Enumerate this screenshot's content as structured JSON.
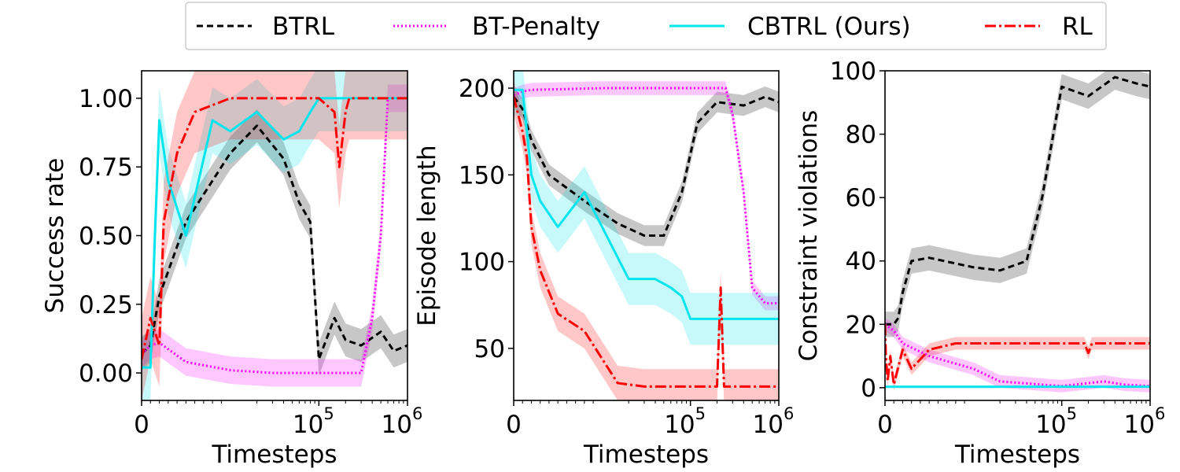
{
  "legend": [
    {
      "name": "BTRL",
      "color": "#000000",
      "dash": "8,5"
    },
    {
      "name": "BT-Penalty",
      "color": "#ff00ff",
      "dash": "2,3"
    },
    {
      "name": "CBTRL (Ours)",
      "color": "#00e5ee",
      "dash": ""
    },
    {
      "name": "RL",
      "color": "#ff0000",
      "dash": "14,4,3,4"
    }
  ],
  "chart_data": [
    {
      "type": "line",
      "title": "",
      "xlabel": "Timesteps",
      "ylabel": "Success rate",
      "xscale": "symlog",
      "xlim": [
        0,
        1000000
      ],
      "ylim": [
        -0.1,
        1.1
      ],
      "yticks": [
        "0.00",
        "0.25",
        "0.50",
        "0.75",
        "1.00"
      ],
      "ytick_values": [
        0.0,
        0.25,
        0.5,
        0.75,
        1.0
      ],
      "xtick_labels": [
        "0",
        "10",
        "10"
      ],
      "xtick_sups": [
        "",
        "5",
        "6"
      ],
      "series": [
        {
          "name": "BTRL",
          "x": [
            0,
            1000,
            2000,
            5000,
            10000,
            20000,
            40000,
            60000,
            80000,
            100000,
            150000,
            200000,
            300000,
            500000,
            700000,
            1000000
          ],
          "y": [
            0.07,
            0.1,
            0.28,
            0.55,
            0.8,
            0.9,
            0.78,
            0.62,
            0.55,
            0.05,
            0.2,
            0.12,
            0.1,
            0.15,
            0.08,
            0.1
          ],
          "band": 0.06
        },
        {
          "name": "BT-Penalty",
          "x": [
            0,
            1000,
            2000,
            5000,
            10000,
            30000,
            100000,
            300000,
            400000,
            500000,
            600000,
            1000000
          ],
          "y": [
            0.07,
            0.1,
            0.11,
            0.04,
            0.01,
            0.0,
            0.0,
            0.0,
            0.2,
            0.5,
            1.0,
            1.0
          ],
          "band": 0.05
        },
        {
          "name": "CBTRL (Ours)",
          "x": [
            0,
            1000,
            1500,
            2000,
            3000,
            5000,
            8000,
            10000,
            20000,
            40000,
            60000,
            80000,
            100000,
            1000000
          ],
          "y": [
            0.02,
            0.02,
            0.5,
            0.92,
            0.7,
            0.5,
            0.92,
            0.88,
            0.95,
            0.85,
            0.88,
            0.95,
            1.0,
            1.0
          ],
          "band": 0.12
        },
        {
          "name": "RL",
          "x": [
            0,
            1000,
            2000,
            2500,
            4000,
            6000,
            10000,
            20000,
            100000,
            150000,
            170000,
            200000,
            220000,
            1000000
          ],
          "y": [
            0.05,
            0.2,
            0.1,
            0.55,
            0.8,
            0.95,
            1.0,
            1.0,
            1.0,
            0.95,
            0.75,
            0.95,
            1.0,
            1.0
          ],
          "band": 0.15
        }
      ]
    },
    {
      "type": "line",
      "title": "",
      "xlabel": "Timesteps",
      "ylabel": "Episode length",
      "xscale": "symlog",
      "xlim": [
        0,
        1000000
      ],
      "ylim": [
        20,
        210
      ],
      "yticks": [
        "50",
        "100",
        "150",
        "200"
      ],
      "ytick_values": [
        50,
        100,
        150,
        200
      ],
      "xtick_labels": [
        "0",
        "10",
        "10"
      ],
      "xtick_sups": [
        "",
        "5",
        "6"
      ],
      "series": [
        {
          "name": "BTRL",
          "x": [
            0,
            1000,
            2000,
            4000,
            8000,
            15000,
            30000,
            50000,
            80000,
            120000,
            200000,
            400000,
            700000,
            1000000
          ],
          "y": [
            195,
            188,
            170,
            150,
            135,
            122,
            115,
            115,
            140,
            180,
            192,
            190,
            195,
            192
          ],
          "band": 6
        },
        {
          "name": "BT-Penalty",
          "x": [
            0,
            1000,
            2000,
            10000,
            100000,
            250000,
            300000,
            400000,
            500000,
            700000,
            1000000
          ],
          "y": [
            196,
            198,
            199,
            200,
            200,
            200,
            185,
            140,
            85,
            76,
            76
          ],
          "band": 4
        },
        {
          "name": "CBTRL (Ours)",
          "x": [
            0,
            1000,
            1500,
            2000,
            3000,
            5000,
            8000,
            20000,
            40000,
            60000,
            80000,
            100000,
            1000000
          ],
          "y": [
            199,
            199,
            175,
            150,
            135,
            120,
            140,
            90,
            90,
            85,
            80,
            67,
            67
          ],
          "band": 15
        },
        {
          "name": "RL",
          "x": [
            0,
            500,
            1000,
            1500,
            2000,
            3000,
            5000,
            8000,
            15000,
            30000,
            60000,
            100000,
            200000,
            220000,
            240000,
            1000000
          ],
          "y": [
            195,
            185,
            175,
            160,
            120,
            95,
            70,
            60,
            30,
            28,
            28,
            28,
            28,
            85,
            28,
            28
          ],
          "band": 10
        }
      ]
    },
    {
      "type": "line",
      "title": "",
      "xlabel": "Timesteps",
      "ylabel": "Constraint violations",
      "xscale": "symlog",
      "xlim": [
        0,
        1000000
      ],
      "ylim": [
        -4,
        100
      ],
      "yticks": [
        "0",
        "20",
        "40",
        "60",
        "80",
        "100"
      ],
      "ytick_values": [
        0,
        20,
        40,
        60,
        80,
        100
      ],
      "xtick_labels": [
        "0",
        "10",
        "10"
      ],
      "xtick_sups": [
        "",
        "5",
        "6"
      ],
      "series": [
        {
          "name": "BTRL",
          "x": [
            0,
            1000,
            1500,
            2000,
            3000,
            5000,
            10000,
            20000,
            40000,
            60000,
            100000,
            200000,
            400000,
            700000,
            1000000
          ],
          "y": [
            20,
            20,
            22,
            30,
            40,
            41,
            38,
            37,
            40,
            60,
            95,
            92,
            98,
            96,
            95
          ],
          "band": 4
        },
        {
          "name": "BT-Penalty",
          "x": [
            0,
            1000,
            2000,
            5000,
            10000,
            20000,
            100000,
            300000,
            500000,
            1000000
          ],
          "y": [
            20,
            18,
            14,
            10,
            6,
            2,
            0.5,
            2,
            1,
            0.5
          ],
          "band": 2
        },
        {
          "name": "CBTRL (Ours)",
          "x": [
            0,
            1000000
          ],
          "y": [
            0.3,
            0.3
          ],
          "band": 0.3
        },
        {
          "name": "RL",
          "x": [
            0,
            100,
            300,
            600,
            1000,
            2000,
            3000,
            5000,
            8000,
            20000,
            100000,
            180000,
            200000,
            220000,
            1000000
          ],
          "y": [
            20,
            10,
            2,
            10,
            1,
            12,
            6,
            12,
            14,
            14,
            14,
            14,
            11,
            14,
            14
          ],
          "band": 2
        }
      ]
    }
  ]
}
